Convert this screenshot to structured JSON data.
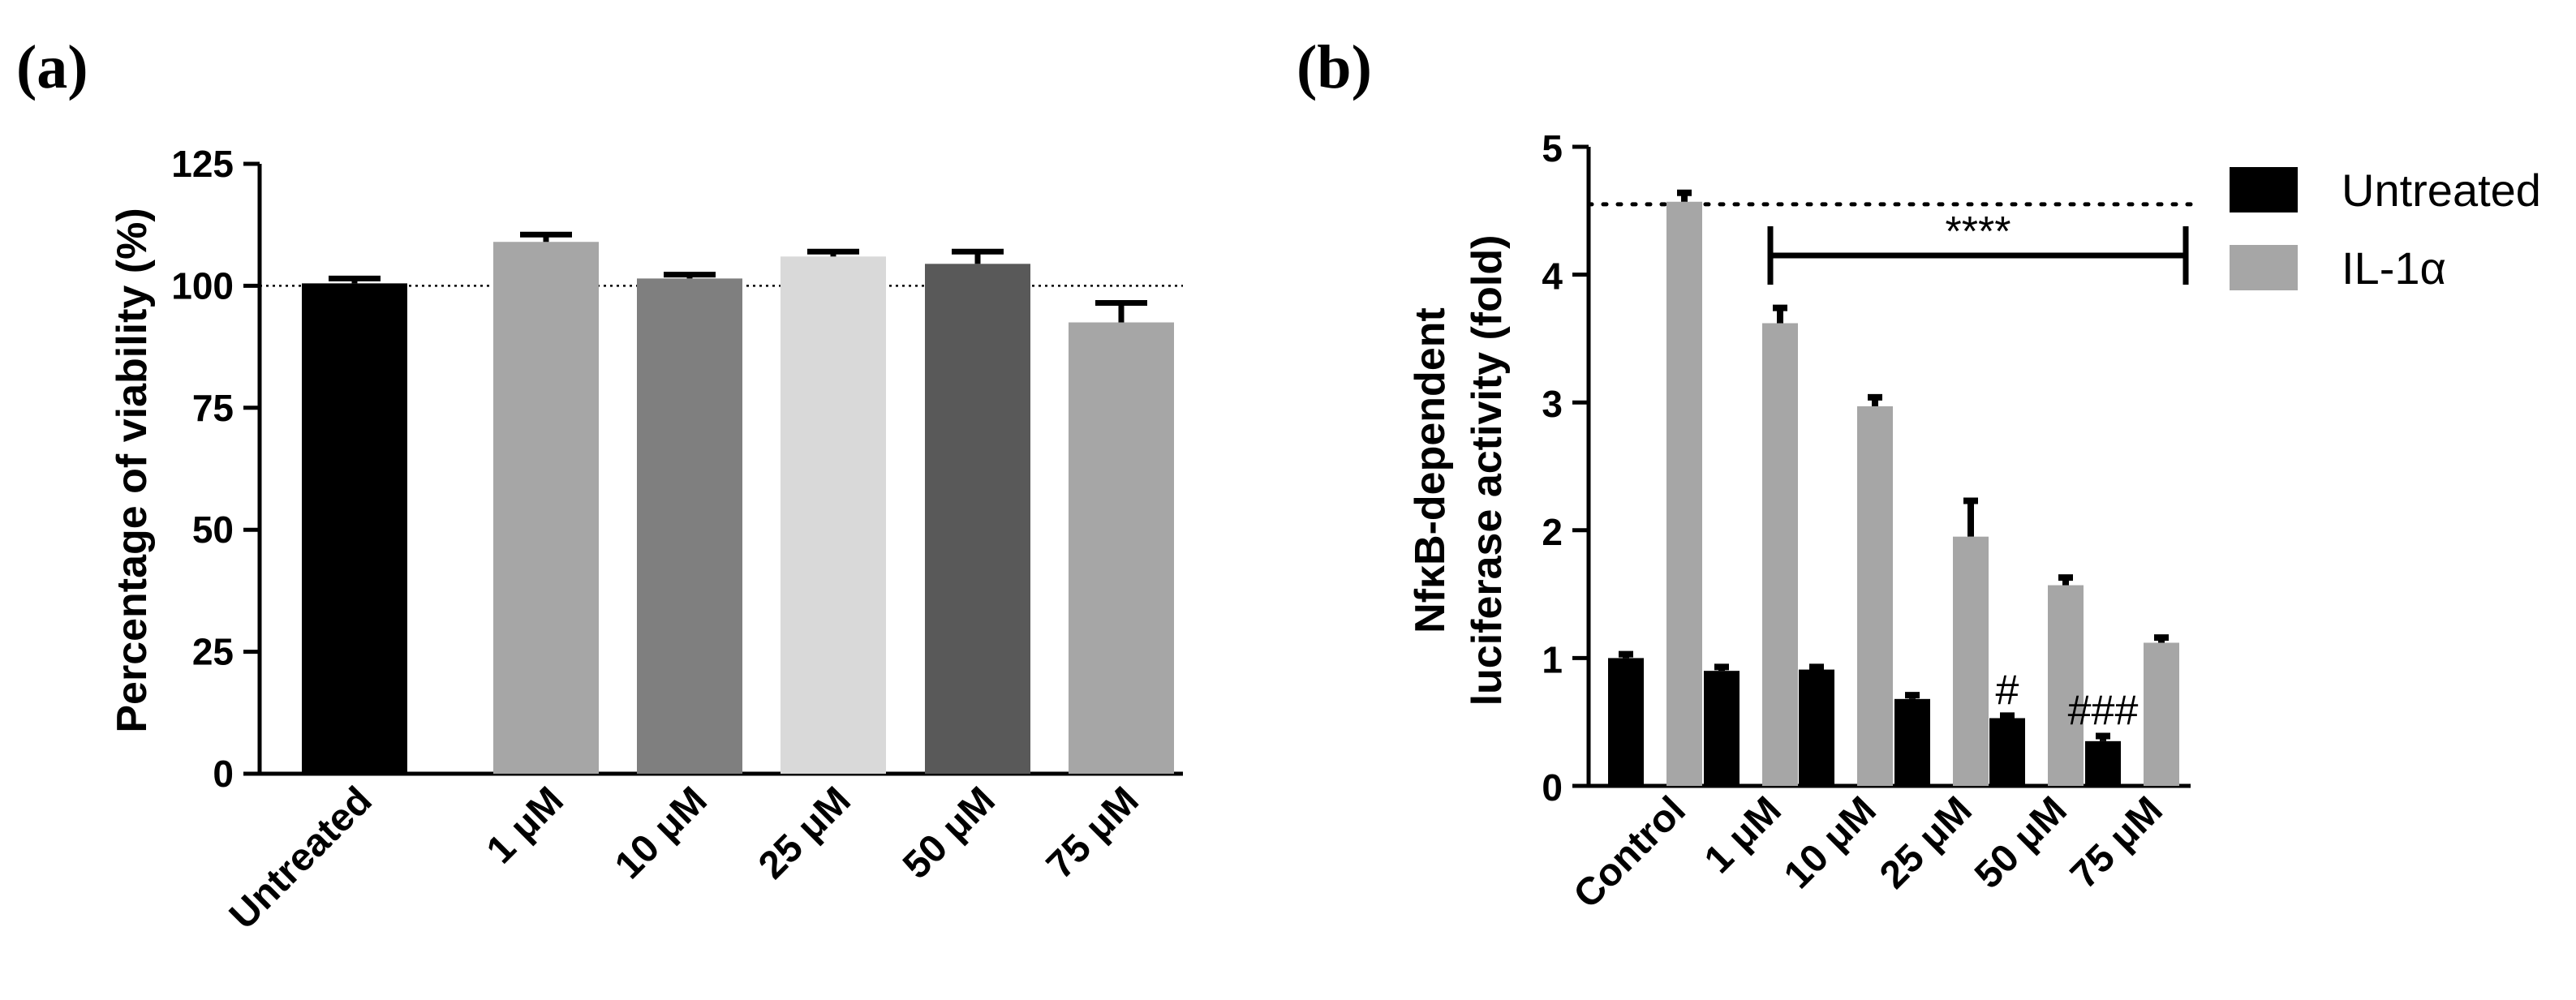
{
  "chart_data": [
    {
      "type": "bar",
      "panel_label": "(a)",
      "title": "",
      "xlabel": "",
      "ylabel": "Percentage of viability (%)",
      "ylim": [
        0,
        125
      ],
      "yticks": [
        0,
        25,
        50,
        75,
        100,
        125
      ],
      "reference_line": 100,
      "categories": [
        "Untreated",
        "1 μM",
        "10 μM",
        "25 μM",
        "50 μM",
        "75 μM"
      ],
      "values": [
        100.5,
        109,
        101.5,
        106,
        104.5,
        92.5
      ],
      "errors": [
        1,
        1.5,
        0.8,
        1,
        2.5,
        4
      ],
      "colors": [
        "#000000",
        "#a6a6a6",
        "#7f7f7f",
        "#d9d9d9",
        "#595959",
        "#a6a6a6"
      ]
    },
    {
      "type": "bar",
      "panel_label": "(b)",
      "title": "",
      "xlabel": "",
      "ylabel_line1": "NfκB-dependent",
      "ylabel_line2": "luciferase activity (fold)",
      "ylim": [
        0,
        5
      ],
      "yticks": [
        0,
        1,
        2,
        3,
        4,
        5
      ],
      "reference_line": 4.55,
      "categories": [
        "Control",
        "1 μM",
        "10 μM",
        "25 μM",
        "50 μM",
        "75 μM"
      ],
      "series": [
        {
          "name": "Untreated",
          "color": "#000000",
          "values": [
            1.0,
            0.9,
            0.91,
            0.68,
            0.53,
            0.35
          ],
          "errors": [
            0.03,
            0.03,
            0.02,
            0.03,
            0.02,
            0.04
          ]
        },
        {
          "name": "IL-1α",
          "color": "#a6a6a6",
          "values": [
            4.57,
            3.62,
            2.97,
            1.95,
            1.57,
            1.12
          ],
          "errors": [
            0.07,
            0.12,
            0.07,
            0.28,
            0.06,
            0.04
          ]
        }
      ],
      "significance": {
        "label": "****",
        "from_category": "1 μM",
        "to_category": "75 μM",
        "level": 4.15
      },
      "annotations": [
        {
          "text": "#",
          "category": "50 μM",
          "series": "Untreated"
        },
        {
          "text": "###",
          "category": "75 μM",
          "series": "Untreated"
        }
      ]
    }
  ]
}
